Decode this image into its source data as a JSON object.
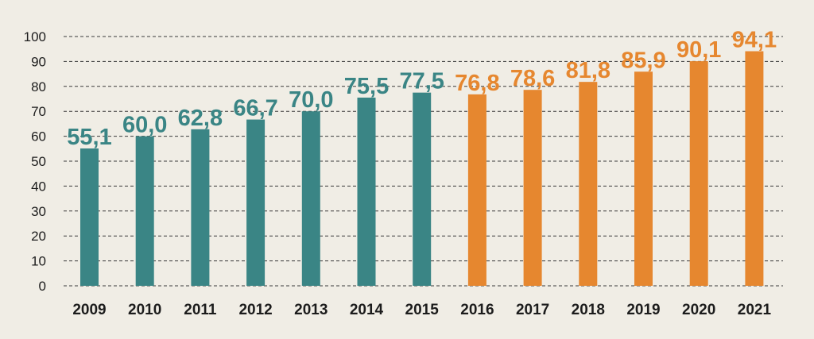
{
  "chart_data": {
    "type": "bar",
    "categories": [
      "2009",
      "2010",
      "2011",
      "2012",
      "2013",
      "2014",
      "2015",
      "2016",
      "2017",
      "2018",
      "2019",
      "2020",
      "2021"
    ],
    "values": [
      55.1,
      60.0,
      62.8,
      66.7,
      70.0,
      75.5,
      77.5,
      76.8,
      78.6,
      81.8,
      85.9,
      90.1,
      94.1
    ],
    "data_labels": [
      "55,1",
      "60,0",
      "62,8",
      "66,7",
      "70,0",
      "75,5",
      "77,5",
      "76,8",
      "78,6",
      "81,8",
      "85,9",
      "90,1",
      "94,1"
    ],
    "bar_colors": [
      "#3a8585",
      "#3a8585",
      "#3a8585",
      "#3a8585",
      "#3a8585",
      "#3a8585",
      "#3a8585",
      "#e6872f",
      "#e6872f",
      "#e6872f",
      "#e6872f",
      "#e6872f",
      "#e6872f"
    ],
    "ylim": [
      0,
      100
    ],
    "yticks": [
      0,
      10,
      20,
      30,
      40,
      50,
      60,
      70,
      80,
      90,
      100
    ],
    "grid": true,
    "grid_style": "dashed",
    "background": "#f0ede5",
    "title": "",
    "xlabel": "",
    "ylabel": ""
  }
}
